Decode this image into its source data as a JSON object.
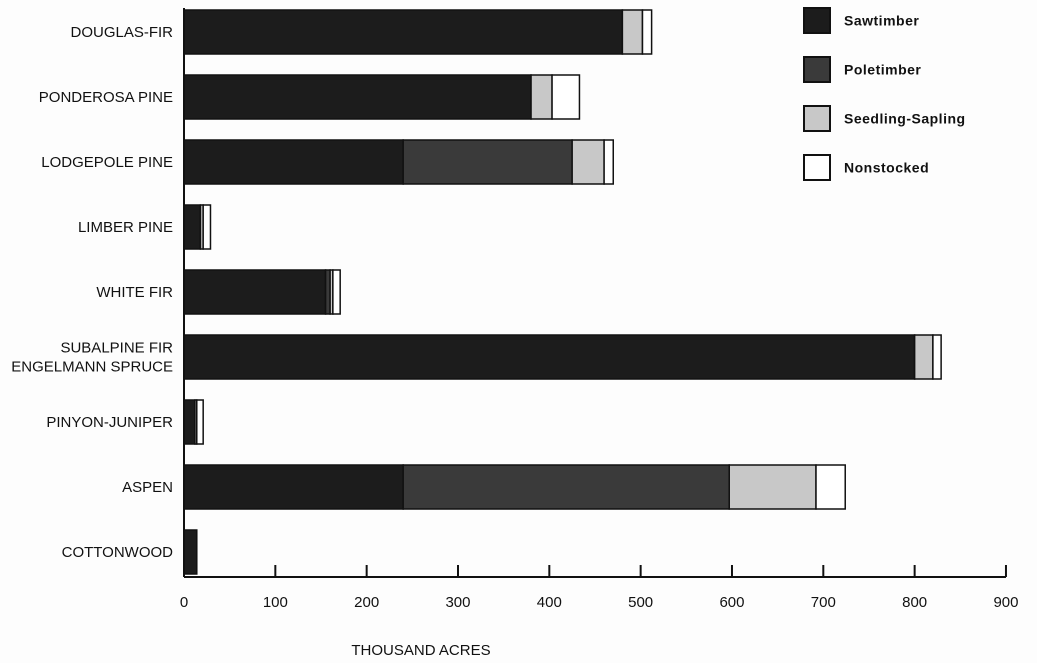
{
  "chart_data": {
    "type": "bar",
    "orientation": "horizontal",
    "stacked": true,
    "categories": [
      [
        "DOUGLAS-FIR"
      ],
      [
        "PONDEROSA PINE"
      ],
      [
        "LODGEPOLE PINE"
      ],
      [
        "LIMBER PINE"
      ],
      [
        "WHITE FIR"
      ],
      [
        "SUBALPINE FIR",
        "ENGELMANN SPRUCE"
      ],
      [
        "PINYON-JUNIPER"
      ],
      [
        "ASPEN"
      ],
      [
        "COTTONWOOD"
      ]
    ],
    "series": [
      {
        "name": "Sawtimber",
        "color": "#1c1c1c",
        "values": [
          480,
          380,
          240,
          18,
          155,
          800,
          12,
          240,
          14
        ]
      },
      {
        "name": "Poletimber",
        "color": "#3a3a3a",
        "values": [
          0,
          0,
          185,
          0,
          5,
          0,
          0,
          357,
          0
        ]
      },
      {
        "name": "Seedling-Sapling",
        "color": "#c8c8c8",
        "values": [
          22,
          23,
          35,
          3,
          3,
          20,
          2,
          95,
          0
        ]
      },
      {
        "name": "Nonstocked",
        "color": "#ffffff",
        "values": [
          10,
          30,
          10,
          8,
          8,
          9,
          7,
          32,
          0
        ]
      }
    ],
    "xlabel": "THOUSAND ACRES",
    "ylabel": "",
    "xlim": [
      0,
      900
    ],
    "xticks": [
      0,
      100,
      200,
      300,
      400,
      500,
      600,
      700,
      800,
      900
    ],
    "legend_position": "top-right",
    "grid": false
  }
}
